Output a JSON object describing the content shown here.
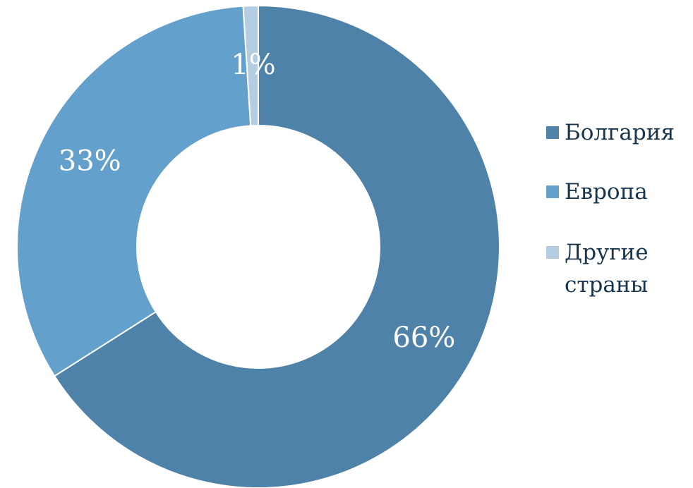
{
  "chart_data": {
    "type": "pie",
    "variant": "donut",
    "categories": [
      "Болгария",
      "Европа",
      "Другие страны"
    ],
    "values": [
      66,
      33,
      1
    ],
    "data_labels": [
      "66%",
      "33%",
      "1%"
    ],
    "legend_lines": [
      [
        "Болгария"
      ],
      [
        "Европа"
      ],
      [
        "Другие",
        "страны"
      ]
    ],
    "colors": [
      "#4f82a8",
      "#63a0cb",
      "#b5cde3"
    ],
    "legend_position": "right",
    "title": ""
  },
  "colors": {
    "background": "#ffffff",
    "label_text": "#ffffff",
    "legend_text": "#17344d",
    "slice_border": "#ffffff"
  }
}
